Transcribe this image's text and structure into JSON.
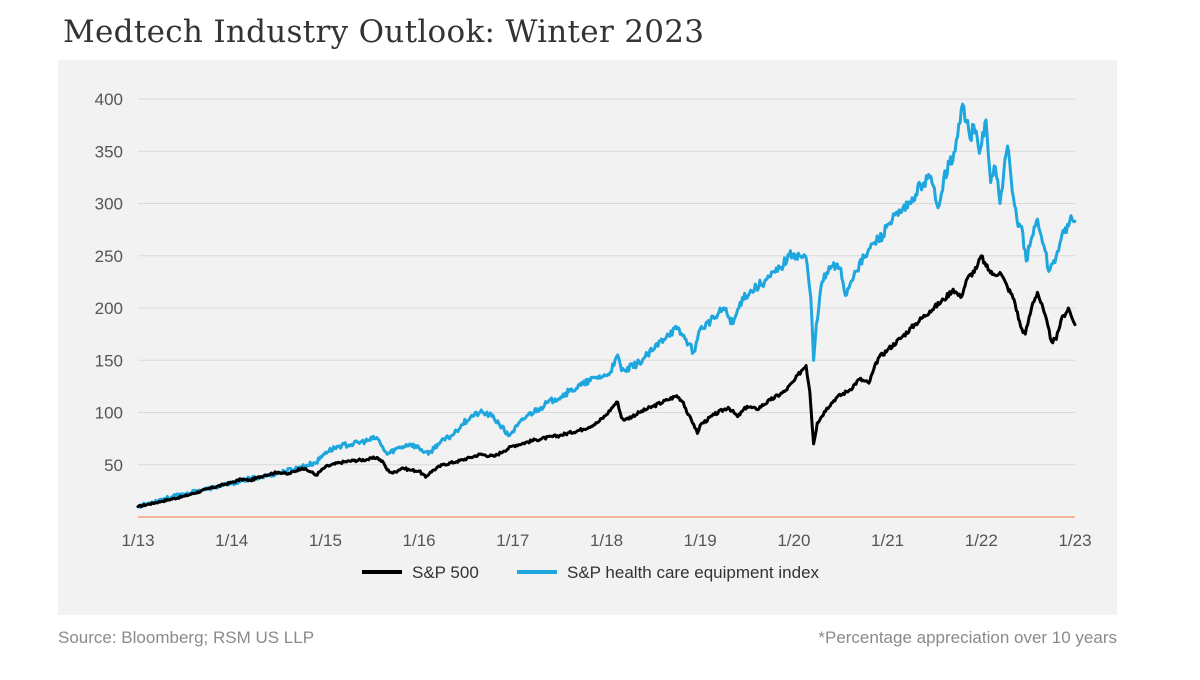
{
  "header": {
    "title": "Medtech Industry Outlook: Winter 2023"
  },
  "footer": {
    "source": "Source: Bloomberg; RSM US LLP",
    "note": "*Percentage appreciation over 10 years"
  },
  "chart_data": {
    "type": "line",
    "title": "",
    "xlabel": "",
    "ylabel": "",
    "ylim": [
      0,
      400
    ],
    "yticks": [
      50,
      100,
      150,
      200,
      250,
      300,
      350,
      400
    ],
    "xlim": [
      2013.0,
      2023.0
    ],
    "xticks": [
      {
        "x": 2013,
        "label": "1/13"
      },
      {
        "x": 2014,
        "label": "1/14"
      },
      {
        "x": 2015,
        "label": "1/15"
      },
      {
        "x": 2016,
        "label": "1/16"
      },
      {
        "x": 2017,
        "label": "1/17"
      },
      {
        "x": 2018,
        "label": "1/18"
      },
      {
        "x": 2019,
        "label": "1/19"
      },
      {
        "x": 2020,
        "label": "1/20"
      },
      {
        "x": 2021,
        "label": "1/21"
      },
      {
        "x": 2022,
        "label": "1/22"
      },
      {
        "x": 2023,
        "label": "1/23"
      }
    ],
    "grid": true,
    "legend": "bottom-center",
    "colors": {
      "sp500": "#000000",
      "health": "#1ea7de",
      "zero_line": "#f2a27a",
      "grid": "#d9d9d9"
    },
    "series": [
      {
        "name": "S&P 500",
        "key": "sp500",
        "points": [
          [
            2013.0,
            10
          ],
          [
            2013.25,
            15
          ],
          [
            2013.5,
            20
          ],
          [
            2013.75,
            27
          ],
          [
            2014.0,
            33
          ],
          [
            2014.1,
            36
          ],
          [
            2014.2,
            35
          ],
          [
            2014.35,
            40
          ],
          [
            2014.5,
            43
          ],
          [
            2014.6,
            41
          ],
          [
            2014.75,
            47
          ],
          [
            2014.85,
            43
          ],
          [
            2014.9,
            40
          ],
          [
            2015.0,
            48
          ],
          [
            2015.15,
            52
          ],
          [
            2015.3,
            54
          ],
          [
            2015.45,
            55
          ],
          [
            2015.55,
            57
          ],
          [
            2015.62,
            52
          ],
          [
            2015.66,
            45
          ],
          [
            2015.72,
            42
          ],
          [
            2015.82,
            47
          ],
          [
            2015.9,
            45
          ],
          [
            2016.0,
            44
          ],
          [
            2016.07,
            38
          ],
          [
            2016.12,
            43
          ],
          [
            2016.25,
            50
          ],
          [
            2016.4,
            53
          ],
          [
            2016.55,
            57
          ],
          [
            2016.65,
            60
          ],
          [
            2016.8,
            58
          ],
          [
            2016.9,
            63
          ],
          [
            2017.0,
            68
          ],
          [
            2017.25,
            74
          ],
          [
            2017.5,
            78
          ],
          [
            2017.75,
            84
          ],
          [
            2017.9,
            90
          ],
          [
            2018.0,
            98
          ],
          [
            2018.08,
            107
          ],
          [
            2018.12,
            110
          ],
          [
            2018.16,
            95
          ],
          [
            2018.2,
            93
          ],
          [
            2018.35,
            100
          ],
          [
            2018.5,
            106
          ],
          [
            2018.65,
            112
          ],
          [
            2018.75,
            116
          ],
          [
            2018.82,
            110
          ],
          [
            2018.87,
            98
          ],
          [
            2018.93,
            89
          ],
          [
            2018.97,
            80
          ],
          [
            2019.0,
            88
          ],
          [
            2019.15,
            98
          ],
          [
            2019.3,
            105
          ],
          [
            2019.4,
            96
          ],
          [
            2019.5,
            106
          ],
          [
            2019.6,
            103
          ],
          [
            2019.75,
            112
          ],
          [
            2019.9,
            120
          ],
          [
            2020.0,
            130
          ],
          [
            2020.08,
            140
          ],
          [
            2020.13,
            145
          ],
          [
            2020.17,
            120
          ],
          [
            2020.21,
            70
          ],
          [
            2020.25,
            90
          ],
          [
            2020.35,
            104
          ],
          [
            2020.45,
            114
          ],
          [
            2020.6,
            122
          ],
          [
            2020.7,
            132
          ],
          [
            2020.8,
            128
          ],
          [
            2020.9,
            152
          ],
          [
            2021.0,
            160
          ],
          [
            2021.15,
            172
          ],
          [
            2021.3,
            185
          ],
          [
            2021.45,
            197
          ],
          [
            2021.6,
            208
          ],
          [
            2021.7,
            218
          ],
          [
            2021.78,
            210
          ],
          [
            2021.85,
            228
          ],
          [
            2021.95,
            238
          ],
          [
            2022.0,
            250
          ],
          [
            2022.05,
            240
          ],
          [
            2022.12,
            232
          ],
          [
            2022.2,
            234
          ],
          [
            2022.28,
            220
          ],
          [
            2022.35,
            208
          ],
          [
            2022.42,
            182
          ],
          [
            2022.47,
            175
          ],
          [
            2022.55,
            205
          ],
          [
            2022.6,
            215
          ],
          [
            2022.67,
            196
          ],
          [
            2022.75,
            168
          ],
          [
            2022.8,
            170
          ],
          [
            2022.85,
            188
          ],
          [
            2022.93,
            200
          ],
          [
            2022.97,
            190
          ],
          [
            2023.0,
            184
          ]
        ]
      },
      {
        "name": "S&P health care equipment index",
        "key": "health",
        "points": [
          [
            2013.0,
            10
          ],
          [
            2013.25,
            17
          ],
          [
            2013.5,
            22
          ],
          [
            2013.75,
            27
          ],
          [
            2014.0,
            32
          ],
          [
            2014.2,
            37
          ],
          [
            2014.35,
            39
          ],
          [
            2014.5,
            42
          ],
          [
            2014.7,
            47
          ],
          [
            2014.9,
            52
          ],
          [
            2015.0,
            62
          ],
          [
            2015.15,
            68
          ],
          [
            2015.3,
            70
          ],
          [
            2015.45,
            73
          ],
          [
            2015.55,
            76
          ],
          [
            2015.6,
            68
          ],
          [
            2015.66,
            60
          ],
          [
            2015.75,
            65
          ],
          [
            2015.9,
            70
          ],
          [
            2016.0,
            66
          ],
          [
            2016.1,
            60
          ],
          [
            2016.2,
            70
          ],
          [
            2016.35,
            78
          ],
          [
            2016.45,
            88
          ],
          [
            2016.55,
            96
          ],
          [
            2016.65,
            100
          ],
          [
            2016.75,
            98
          ],
          [
            2016.85,
            90
          ],
          [
            2016.95,
            78
          ],
          [
            2017.0,
            82
          ],
          [
            2017.15,
            97
          ],
          [
            2017.3,
            105
          ],
          [
            2017.45,
            113
          ],
          [
            2017.6,
            120
          ],
          [
            2017.75,
            127
          ],
          [
            2017.9,
            134
          ],
          [
            2018.0,
            135
          ],
          [
            2018.08,
            145
          ],
          [
            2018.12,
            155
          ],
          [
            2018.16,
            140
          ],
          [
            2018.2,
            140
          ],
          [
            2018.35,
            148
          ],
          [
            2018.5,
            160
          ],
          [
            2018.65,
            175
          ],
          [
            2018.75,
            180
          ],
          [
            2018.85,
            170
          ],
          [
            2018.93,
            158
          ],
          [
            2018.97,
            170
          ],
          [
            2019.0,
            180
          ],
          [
            2019.15,
            190
          ],
          [
            2019.25,
            200
          ],
          [
            2019.35,
            185
          ],
          [
            2019.45,
            210
          ],
          [
            2019.6,
            220
          ],
          [
            2019.75,
            230
          ],
          [
            2019.85,
            238
          ],
          [
            2019.95,
            250
          ],
          [
            2020.0,
            252
          ],
          [
            2020.06,
            250
          ],
          [
            2020.13,
            248
          ],
          [
            2020.18,
            210
          ],
          [
            2020.21,
            150
          ],
          [
            2020.24,
            185
          ],
          [
            2020.3,
            225
          ],
          [
            2020.4,
            240
          ],
          [
            2020.5,
            238
          ],
          [
            2020.55,
            212
          ],
          [
            2020.65,
            235
          ],
          [
            2020.75,
            248
          ],
          [
            2020.85,
            262
          ],
          [
            2020.95,
            270
          ],
          [
            2021.0,
            280
          ],
          [
            2021.15,
            292
          ],
          [
            2021.25,
            300
          ],
          [
            2021.35,
            318
          ],
          [
            2021.45,
            325
          ],
          [
            2021.55,
            298
          ],
          [
            2021.6,
            325
          ],
          [
            2021.72,
            350
          ],
          [
            2021.8,
            395
          ],
          [
            2021.88,
            362
          ],
          [
            2021.92,
            375
          ],
          [
            2021.98,
            348
          ],
          [
            2022.05,
            380
          ],
          [
            2022.1,
            320
          ],
          [
            2022.15,
            335
          ],
          [
            2022.2,
            300
          ],
          [
            2022.28,
            355
          ],
          [
            2022.33,
            312
          ],
          [
            2022.38,
            285
          ],
          [
            2022.43,
            278
          ],
          [
            2022.48,
            245
          ],
          [
            2022.53,
            265
          ],
          [
            2022.6,
            285
          ],
          [
            2022.68,
            255
          ],
          [
            2022.72,
            235
          ],
          [
            2022.8,
            250
          ],
          [
            2022.85,
            265
          ],
          [
            2022.92,
            280
          ],
          [
            2022.97,
            285
          ],
          [
            2023.0,
            283
          ]
        ]
      }
    ]
  }
}
